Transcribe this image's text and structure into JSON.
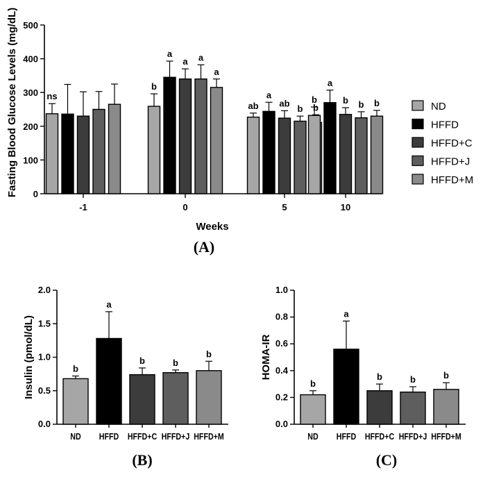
{
  "colors": {
    "ND": "#a6a6a6",
    "HFFD": "#000000",
    "HFFD+C": "#3c3c3c",
    "HFFD+J": "#5e5e5e",
    "HFFD+M": "#8a8a8a"
  },
  "chart_data": [
    {
      "id": "A",
      "type": "bar",
      "panel_label": "(A)",
      "title": "",
      "xlabel": "Weeks",
      "ylabel": "Fasting Blood Glucose Levels (mg/dL)",
      "ylim": [
        0,
        500
      ],
      "yticks": [
        0,
        100,
        200,
        300,
        400,
        500
      ],
      "categories": [
        "-1",
        "0",
        "5",
        "10"
      ],
      "legend": [
        "ND",
        "HFFD",
        "HFFD+C",
        "HFFD+J",
        "HFFD+M"
      ],
      "legend_position": "right",
      "series": [
        {
          "name": "ND",
          "values": [
            237,
            259,
            227,
            232
          ],
          "errors": [
            30,
            37,
            12,
            25
          ],
          "labels": [
            "ns",
            "b",
            "ab",
            "b"
          ]
        },
        {
          "name": "HFFD",
          "values": [
            236,
            345,
            244,
            270
          ],
          "errors": [
            88,
            48,
            27,
            37
          ],
          "labels": [
            "",
            "a",
            "a",
            "a"
          ]
        },
        {
          "name": "HFFD+C",
          "values": [
            230,
            340,
            224,
            235
          ],
          "errors": [
            72,
            30,
            22,
            20
          ],
          "labels": [
            "",
            "a",
            "ab",
            "b"
          ]
        },
        {
          "name": "HFFD+J",
          "values": [
            250,
            340,
            215,
            225
          ],
          "errors": [
            53,
            42,
            15,
            18
          ],
          "labels": [
            "",
            "a",
            "b",
            "b"
          ]
        },
        {
          "name": "HFFD+M",
          "values": [
            265,
            315,
            211,
            230
          ],
          "errors": [
            60,
            25,
            23,
            17
          ],
          "labels": [
            "",
            "a",
            "b",
            "b"
          ]
        }
      ]
    },
    {
      "id": "B",
      "type": "bar",
      "panel_label": "(B)",
      "title": "",
      "xlabel": "",
      "ylabel": "Insulin (pmol/dL)",
      "ylim": [
        0,
        2.0
      ],
      "yticks": [
        "0.0",
        "0.5",
        "1.0",
        "1.5",
        "2.0"
      ],
      "categories": [
        "ND",
        "HFFD",
        "HFFD+C",
        "HFFD+J",
        "HFFD+M"
      ],
      "values": [
        0.68,
        1.28,
        0.74,
        0.77,
        0.8
      ],
      "errors": [
        0.04,
        0.4,
        0.1,
        0.04,
        0.14
      ],
      "labels": [
        "b",
        "a",
        "b",
        "b",
        "b"
      ]
    },
    {
      "id": "C",
      "type": "bar",
      "panel_label": "(C)",
      "title": "",
      "xlabel": "",
      "ylabel": "HOMA-IR",
      "ylim": [
        0,
        1.0
      ],
      "yticks": [
        "0.0",
        "0.2",
        "0.4",
        "0.6",
        "0.8",
        "1.0"
      ],
      "categories": [
        "ND",
        "HFFD",
        "HFFD+C",
        "HFFD+J",
        "HFFD+M"
      ],
      "values": [
        0.22,
        0.56,
        0.25,
        0.24,
        0.26
      ],
      "errors": [
        0.03,
        0.21,
        0.05,
        0.04,
        0.05
      ],
      "labels": [
        "b",
        "a",
        "b",
        "b",
        "b"
      ]
    }
  ]
}
